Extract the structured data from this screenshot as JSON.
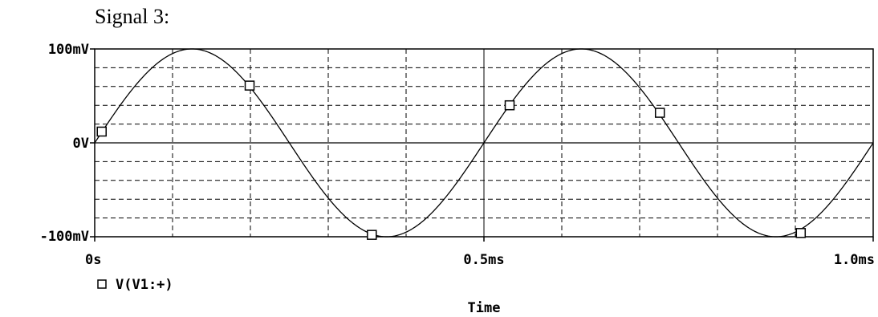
{
  "caption": "Signal 3:",
  "chart_data": {
    "type": "line",
    "xlabel": "Time",
    "ylabel": "",
    "x_ticks": [
      "0s",
      "0.5ms",
      "1.0ms"
    ],
    "y_ticks": [
      "100mV",
      "0V",
      "-100mV"
    ],
    "xlim_ms": [
      0,
      1.0
    ],
    "ylim_mV": [
      -100,
      100
    ],
    "grid": true,
    "grid_style": "dashed",
    "series": [
      {
        "name": "V(V1:+)",
        "marker": "square",
        "amplitude_mV": 100,
        "frequency_kHz": 2,
        "x_ms": [
          0,
          0.025,
          0.05,
          0.075,
          0.1,
          0.125,
          0.15,
          0.175,
          0.2,
          0.225,
          0.25,
          0.275,
          0.3,
          0.325,
          0.35,
          0.375,
          0.4,
          0.425,
          0.45,
          0.475,
          0.5,
          0.525,
          0.55,
          0.575,
          0.6,
          0.625,
          0.65,
          0.675,
          0.7,
          0.725,
          0.75,
          0.775,
          0.8,
          0.825,
          0.85,
          0.875,
          0.9,
          0.925,
          0.95,
          0.975,
          1.0
        ],
        "y_mV": [
          0,
          30.9,
          58.8,
          80.9,
          95.1,
          100,
          95.1,
          80.9,
          58.8,
          30.9,
          0,
          -30.9,
          -58.8,
          -80.9,
          -95.1,
          -100,
          -95.1,
          -80.9,
          -58.8,
          -30.9,
          0,
          30.9,
          58.8,
          80.9,
          95.1,
          100,
          95.1,
          80.9,
          58.8,
          30.9,
          0,
          -30.9,
          -58.8,
          -80.9,
          -95.1,
          -100,
          -95.1,
          -80.9,
          -58.8,
          -30.9,
          0
        ],
        "marker_points": [
          {
            "x_ms": 0.009,
            "y_mV": 12
          },
          {
            "x_ms": 0.199,
            "y_mV": 61
          },
          {
            "x_ms": 0.356,
            "y_mV": -98
          },
          {
            "x_ms": 0.533,
            "y_mV": 40
          },
          {
            "x_ms": 0.726,
            "y_mV": 32
          },
          {
            "x_ms": 0.907,
            "y_mV": -96
          }
        ]
      }
    ]
  },
  "legend": {
    "marker_icon": "square-marker-icon",
    "label": "V(V1:+)"
  }
}
